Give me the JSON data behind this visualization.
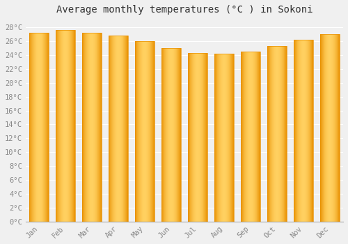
{
  "title": "Average monthly temperatures (°C ) in Sokoni",
  "months": [
    "Jan",
    "Feb",
    "Mar",
    "Apr",
    "May",
    "Jun",
    "Jul",
    "Aug",
    "Sep",
    "Oct",
    "Nov",
    "Dec"
  ],
  "values": [
    27.2,
    27.6,
    27.2,
    26.8,
    26.0,
    25.0,
    24.3,
    24.2,
    24.5,
    25.3,
    26.2,
    27.0
  ],
  "bar_color_center": "#FFD060",
  "bar_color_edge": "#E89000",
  "ylim_max": 29,
  "ytick_step": 2,
  "background_color": "#f0f0f0",
  "grid_color": "#ffffff",
  "tick_label_color": "#888888",
  "title_color": "#333333",
  "title_fontsize": 10,
  "tick_fontsize": 7.5,
  "bar_width": 0.75
}
